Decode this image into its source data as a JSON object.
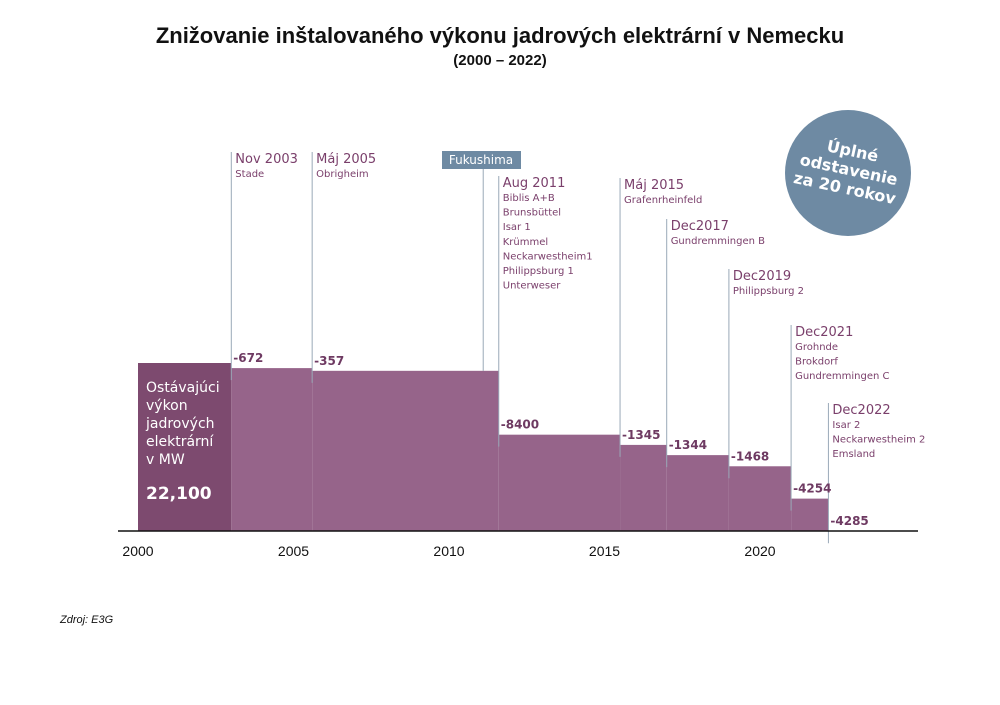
{
  "chart_data": {
    "type": "step-area",
    "title": "Znižovanie inštalovaného výkonu jadrových elektrární v Nemecku",
    "subtitle": "(2000 – 2022)",
    "x_ticks": [
      2000,
      2005,
      2010,
      2015,
      2020
    ],
    "xlim": [
      2000,
      2025
    ],
    "ylim": [
      0,
      22100
    ],
    "initial_value": 22100,
    "initial_label": [
      "Ostávajúci",
      "výkon",
      "jadrových",
      "elektrární",
      "v MW"
    ],
    "initial_value_label": "22,100",
    "steps": [
      {
        "year": 2003.0,
        "date": "Nov 2003",
        "delta": -672,
        "delta_label": "-672",
        "plants": [
          "Stade"
        ]
      },
      {
        "year": 2005.6,
        "date": "Máj 2005",
        "delta": -357,
        "delta_label": "-357",
        "plants": [
          "Obrigheim"
        ]
      },
      {
        "year": 2011.6,
        "date": "Aug 2011",
        "delta": -8400,
        "delta_label": "-8400",
        "plants": [
          "Biblis A+B",
          "Brunsbüttel",
          "Isar 1",
          "Krümmel",
          "Neckarwestheim1",
          "Philippsburg 1",
          "Unterweser"
        ]
      },
      {
        "year": 2015.5,
        "date": "Máj 2015",
        "delta": -1345,
        "delta_label": "-1345",
        "plants": [
          "Grafenrheinfeld"
        ]
      },
      {
        "year": 2017.0,
        "date": "Dec2017",
        "delta": -1344,
        "delta_label": "-1344",
        "plants": [
          "Gundremmingen B"
        ]
      },
      {
        "year": 2019.0,
        "date": "Dec2019",
        "delta": -1468,
        "delta_label": "-1468",
        "plants": [
          "Philippsburg 2"
        ]
      },
      {
        "year": 2021.0,
        "date": "Dec2021",
        "delta": -4254,
        "delta_label": "-4254",
        "plants": [
          "Grohnde",
          "Brokdorf",
          "Gundremmingen C"
        ]
      },
      {
        "year": 2022.2,
        "date": "Dec2022",
        "delta": -4285,
        "delta_label": "-4285",
        "plants": [
          "Isar 2",
          "Neckarwestheim 2",
          "Emsland"
        ]
      }
    ],
    "annotation": {
      "label": "Fukushima",
      "year": 2011.1
    },
    "badge": [
      "Úplné",
      "odstavenie",
      "za 20 rokov"
    ]
  },
  "source": "Zdroj: E3G",
  "colors": {
    "area": "#96648a",
    "area_initial": "#7d4a6f",
    "label_text": "#7a3f6b",
    "guide_line": "#9aa9b8",
    "annotation": "#6e8aa3",
    "axis": "#111111"
  }
}
